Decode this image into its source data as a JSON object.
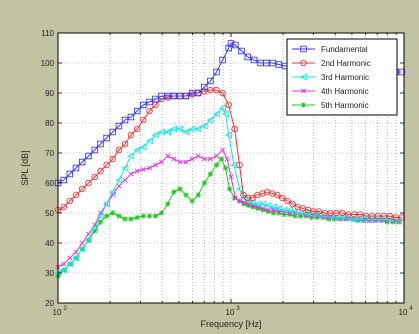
{
  "chart_data": {
    "type": "line",
    "title": "",
    "xlabel": "Frequency [Hz]",
    "ylabel": "SPL [dB]",
    "xscale": "log",
    "xlim": [
      100,
      10000
    ],
    "ylim": [
      20,
      110
    ],
    "grid": true,
    "legend_position": "top-right",
    "x_tick_labels": [
      {
        "value": 100,
        "base": "10",
        "exp": "2"
      },
      {
        "value": 1000,
        "base": "10",
        "exp": "3"
      },
      {
        "value": 10000,
        "base": "10",
        "exp": "4"
      }
    ],
    "y_tick_labels": [
      "20",
      "30",
      "40",
      "50",
      "60",
      "70",
      "80",
      "90",
      "100",
      "110"
    ],
    "series": [
      {
        "name": "Fundamental",
        "color": "#3a3af0",
        "marker": "square",
        "points": [
          [
            100,
            60
          ],
          [
            108,
            61
          ],
          [
            117,
            63
          ],
          [
            127,
            65
          ],
          [
            138,
            67
          ],
          [
            150,
            69
          ],
          [
            163,
            71
          ],
          [
            176,
            73
          ],
          [
            191,
            75
          ],
          [
            207,
            77
          ],
          [
            225,
            79
          ],
          [
            244,
            81
          ],
          [
            264,
            82
          ],
          [
            287,
            84
          ],
          [
            311,
            86
          ],
          [
            338,
            87
          ],
          [
            366,
            88
          ],
          [
            397,
            89
          ],
          [
            431,
            89
          ],
          [
            467,
            89
          ],
          [
            507,
            89
          ],
          [
            549,
            89
          ],
          [
            596,
            90
          ],
          [
            646,
            90
          ],
          [
            701,
            92
          ],
          [
            760,
            94
          ],
          [
            825,
            97
          ],
          [
            894,
            101
          ],
          [
            970,
            105
          ],
          [
            1000,
            106.5
          ],
          [
            1060,
            106
          ],
          [
            1150,
            104
          ],
          [
            1250,
            102
          ],
          [
            1360,
            101
          ],
          [
            1480,
            100
          ],
          [
            1600,
            100
          ],
          [
            1740,
            100
          ],
          [
            1890,
            99.5
          ],
          [
            2050,
            99
          ],
          [
            2230,
            99
          ],
          [
            2420,
            99
          ],
          [
            2620,
            98.5
          ],
          [
            2850,
            98
          ],
          [
            3090,
            98
          ],
          [
            3350,
            98
          ],
          [
            3640,
            97.5
          ],
          [
            3950,
            97
          ],
          [
            4290,
            97
          ],
          [
            4650,
            97
          ],
          [
            5050,
            97
          ],
          [
            5480,
            97
          ],
          [
            5950,
            97
          ],
          [
            6450,
            97
          ],
          [
            7000,
            97
          ],
          [
            7600,
            97
          ],
          [
            8250,
            97
          ],
          [
            8950,
            97
          ],
          [
            9700,
            97
          ]
        ]
      },
      {
        "name": "2nd Harmonic",
        "color": "#ee3535",
        "marker": "circle",
        "points": [
          [
            100,
            51
          ],
          [
            108,
            52
          ],
          [
            117,
            54
          ],
          [
            127,
            56
          ],
          [
            138,
            58
          ],
          [
            150,
            60
          ],
          [
            163,
            62
          ],
          [
            176,
            64
          ],
          [
            191,
            66
          ],
          [
            207,
            68
          ],
          [
            225,
            71
          ],
          [
            244,
            73
          ],
          [
            264,
            76
          ],
          [
            287,
            78
          ],
          [
            311,
            81
          ],
          [
            338,
            84
          ],
          [
            366,
            86
          ],
          [
            397,
            88
          ],
          [
            431,
            88.5
          ],
          [
            467,
            89
          ],
          [
            507,
            89
          ],
          [
            549,
            89
          ],
          [
            596,
            89.5
          ],
          [
            646,
            90
          ],
          [
            701,
            90.5
          ],
          [
            760,
            91
          ],
          [
            825,
            91
          ],
          [
            894,
            90
          ],
          [
            970,
            86
          ],
          [
            1050,
            78
          ],
          [
            1120,
            66
          ],
          [
            1180,
            56
          ],
          [
            1250,
            55
          ],
          [
            1330,
            55
          ],
          [
            1420,
            56
          ],
          [
            1520,
            56.5
          ],
          [
            1620,
            57
          ],
          [
            1730,
            56.5
          ],
          [
            1850,
            56
          ],
          [
            1980,
            55
          ],
          [
            2120,
            54
          ],
          [
            2270,
            53
          ],
          [
            2430,
            52
          ],
          [
            2600,
            51.5
          ],
          [
            2790,
            51
          ],
          [
            3000,
            50.5
          ],
          [
            3230,
            50.5
          ],
          [
            3480,
            50
          ],
          [
            3760,
            50
          ],
          [
            4070,
            50
          ],
          [
            4400,
            50
          ],
          [
            4760,
            49.5
          ],
          [
            5150,
            49.5
          ],
          [
            5570,
            49.5
          ],
          [
            6030,
            49
          ],
          [
            6520,
            49
          ],
          [
            7050,
            49
          ],
          [
            7640,
            49
          ],
          [
            8270,
            49
          ],
          [
            8950,
            48.5
          ],
          [
            9700,
            48.5
          ]
        ]
      },
      {
        "name": "3rd Harmonic",
        "color": "#19e3e3",
        "marker": "triangle-left",
        "points": [
          [
            100,
            30
          ],
          [
            108,
            31
          ],
          [
            117,
            33
          ],
          [
            127,
            35
          ],
          [
            138,
            38
          ],
          [
            150,
            41
          ],
          [
            163,
            45
          ],
          [
            176,
            49
          ],
          [
            191,
            53
          ],
          [
            207,
            57
          ],
          [
            225,
            61
          ],
          [
            244,
            65
          ],
          [
            264,
            69
          ],
          [
            287,
            71
          ],
          [
            311,
            72
          ],
          [
            338,
            74
          ],
          [
            366,
            76
          ],
          [
            397,
            77
          ],
          [
            431,
            77
          ],
          [
            467,
            78
          ],
          [
            507,
            78
          ],
          [
            549,
            77
          ],
          [
            596,
            78
          ],
          [
            646,
            78
          ],
          [
            701,
            79
          ],
          [
            760,
            81
          ],
          [
            825,
            83
          ],
          [
            894,
            85
          ],
          [
            930,
            83
          ],
          [
            970,
            76
          ],
          [
            1040,
            66
          ],
          [
            1120,
            58
          ],
          [
            1190,
            55
          ],
          [
            1260,
            54
          ],
          [
            1340,
            53.5
          ],
          [
            1430,
            53
          ],
          [
            1530,
            53
          ],
          [
            1640,
            52.5
          ],
          [
            1760,
            52
          ],
          [
            1890,
            51.5
          ],
          [
            2030,
            51
          ],
          [
            2180,
            51
          ],
          [
            2340,
            50.5
          ],
          [
            2520,
            50
          ],
          [
            2710,
            50
          ],
          [
            2920,
            49.5
          ],
          [
            3150,
            49.5
          ],
          [
            3400,
            49
          ],
          [
            3670,
            49
          ],
          [
            3960,
            48.5
          ],
          [
            4280,
            48.5
          ],
          [
            4620,
            48.5
          ],
          [
            5000,
            48
          ],
          [
            5400,
            48
          ],
          [
            5840,
            48
          ],
          [
            6310,
            48
          ],
          [
            6820,
            48
          ],
          [
            7370,
            48
          ],
          [
            7970,
            48
          ],
          [
            8610,
            47.5
          ],
          [
            9300,
            47.5
          ]
        ]
      },
      {
        "name": "4th Harmonic",
        "color": "#e234e2",
        "marker": "x",
        "points": [
          [
            100,
            32
          ],
          [
            108,
            33
          ],
          [
            117,
            35
          ],
          [
            127,
            37
          ],
          [
            138,
            40
          ],
          [
            150,
            43
          ],
          [
            163,
            46
          ],
          [
            176,
            50
          ],
          [
            191,
            53
          ],
          [
            207,
            56
          ],
          [
            225,
            59
          ],
          [
            244,
            61
          ],
          [
            264,
            63
          ],
          [
            287,
            64
          ],
          [
            311,
            64.5
          ],
          [
            338,
            65
          ],
          [
            366,
            66
          ],
          [
            397,
            67
          ],
          [
            431,
            69
          ],
          [
            467,
            68
          ],
          [
            507,
            67
          ],
          [
            549,
            67
          ],
          [
            596,
            68
          ],
          [
            646,
            69
          ],
          [
            701,
            68
          ],
          [
            760,
            68
          ],
          [
            825,
            69
          ],
          [
            894,
            71
          ],
          [
            950,
            68
          ],
          [
            1000,
            62
          ],
          [
            1060,
            55
          ],
          [
            1120,
            54
          ],
          [
            1190,
            53.5
          ],
          [
            1260,
            53
          ],
          [
            1340,
            52.5
          ],
          [
            1430,
            52
          ],
          [
            1530,
            51.5
          ],
          [
            1640,
            51
          ],
          [
            1760,
            51
          ],
          [
            1890,
            50.5
          ],
          [
            2030,
            50.5
          ],
          [
            2180,
            50
          ],
          [
            2340,
            50
          ],
          [
            2520,
            49.5
          ],
          [
            2710,
            49.5
          ],
          [
            2920,
            49
          ],
          [
            3150,
            49
          ],
          [
            3400,
            48.5
          ],
          [
            3670,
            48.5
          ],
          [
            3960,
            48.5
          ],
          [
            4280,
            48
          ],
          [
            4620,
            48
          ],
          [
            5000,
            48
          ],
          [
            5400,
            48
          ],
          [
            5840,
            47.5
          ],
          [
            6310,
            47.5
          ],
          [
            6820,
            47.5
          ],
          [
            7370,
            47.5
          ],
          [
            7970,
            47.5
          ],
          [
            8610,
            47.5
          ],
          [
            9300,
            47
          ]
        ]
      },
      {
        "name": "5th Harmonic",
        "color": "#20c820",
        "marker": "star",
        "points": [
          [
            100,
            29
          ],
          [
            108,
            31
          ],
          [
            117,
            33
          ],
          [
            127,
            35
          ],
          [
            138,
            38
          ],
          [
            150,
            41
          ],
          [
            163,
            44
          ],
          [
            176,
            47
          ],
          [
            191,
            49
          ],
          [
            207,
            50
          ],
          [
            225,
            49
          ],
          [
            244,
            48
          ],
          [
            264,
            48
          ],
          [
            287,
            48.5
          ],
          [
            311,
            49
          ],
          [
            338,
            49
          ],
          [
            366,
            49
          ],
          [
            397,
            50
          ],
          [
            431,
            53
          ],
          [
            467,
            57
          ],
          [
            507,
            58
          ],
          [
            549,
            56
          ],
          [
            596,
            54
          ],
          [
            646,
            56
          ],
          [
            701,
            60
          ],
          [
            760,
            63
          ],
          [
            825,
            66
          ],
          [
            880,
            68
          ],
          [
            930,
            65
          ],
          [
            980,
            58
          ],
          [
            1050,
            55
          ],
          [
            1120,
            54
          ],
          [
            1190,
            53
          ],
          [
            1260,
            52.5
          ],
          [
            1340,
            52
          ],
          [
            1430,
            51.5
          ],
          [
            1530,
            51
          ],
          [
            1640,
            50.5
          ],
          [
            1760,
            50
          ],
          [
            1890,
            50
          ],
          [
            2030,
            49.5
          ],
          [
            2180,
            49.5
          ],
          [
            2340,
            49
          ],
          [
            2520,
            49
          ],
          [
            2710,
            49
          ],
          [
            2920,
            48.5
          ],
          [
            3150,
            48.5
          ],
          [
            3400,
            48.5
          ],
          [
            3670,
            48
          ],
          [
            3960,
            48
          ],
          [
            4280,
            48
          ],
          [
            4620,
            48
          ],
          [
            5000,
            48
          ],
          [
            5400,
            47.5
          ],
          [
            5840,
            47.5
          ],
          [
            6310,
            47.5
          ],
          [
            6820,
            47.5
          ],
          [
            7370,
            47.5
          ],
          [
            7970,
            47
          ],
          [
            8610,
            47
          ],
          [
            9300,
            47
          ]
        ]
      }
    ]
  }
}
